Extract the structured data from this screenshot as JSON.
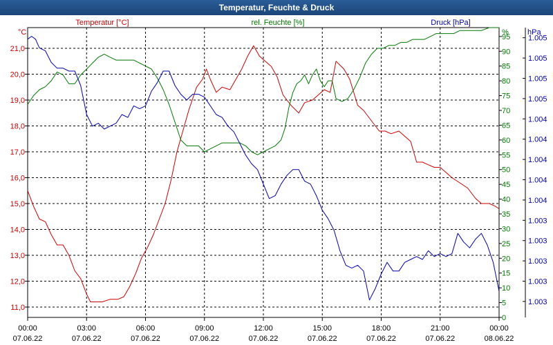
{
  "chart_data": {
    "type": "line",
    "title": "Temperatur, Feuchte & Druck",
    "x_ticks": [
      {
        "time": "00:00",
        "date": "07.06.22"
      },
      {
        "time": "03:00",
        "date": "07.06.22"
      },
      {
        "time": "06:00",
        "date": "07.06.22"
      },
      {
        "time": "09:00",
        "date": "07.06.22"
      },
      {
        "time": "12:00",
        "date": "07.06.22"
      },
      {
        "time": "15:00",
        "date": "07.06.22"
      },
      {
        "time": "18:00",
        "date": "07.06.22"
      },
      {
        "time": "21:00",
        "date": "07.06.22"
      },
      {
        "time": "00:00",
        "date": "08.06.22"
      }
    ],
    "xlim_hours": [
      0,
      24
    ],
    "grid": true,
    "axes": {
      "temperature": {
        "unit": "°C",
        "range": [
          10.6,
          21.8
        ],
        "ticks": [
          "21,0",
          "20,0",
          "19,0",
          "18,0",
          "17,0",
          "16,0",
          "15,0",
          "14,0",
          "13,0",
          "12,0",
          "11,0"
        ],
        "tick_values": [
          21,
          20,
          19,
          18,
          17,
          16,
          15,
          14,
          13,
          12,
          11
        ]
      },
      "humidity": {
        "unit": "%",
        "range": [
          0,
          98
        ],
        "ticks": [
          "95",
          "90",
          "85",
          "80",
          "75",
          "70",
          "65",
          "60",
          "55",
          "50",
          "45",
          "40",
          "35",
          "30",
          "25",
          "20",
          "15",
          "10",
          "5",
          "0"
        ],
        "tick_values": [
          95,
          90,
          85,
          80,
          75,
          70,
          65,
          60,
          55,
          50,
          45,
          40,
          35,
          30,
          25,
          20,
          15,
          10,
          5,
          0
        ]
      },
      "pressure": {
        "unit": "hPa",
        "range": [
          0,
          100
        ],
        "ticks": [
          "1.005",
          "1.005",
          "1.005",
          "1.005",
          "1.004",
          "1.004",
          "1.004",
          "1.004",
          "1.004",
          "1.003",
          "1.003",
          "1.003",
          "1.003",
          "1.003"
        ],
        "tick_positions": [
          96.5,
          89.5,
          82.5,
          75.5,
          68.5,
          61.5,
          54.5,
          47.5,
          40.5,
          33.5,
          26.5,
          19.5,
          12.5,
          5.5
        ]
      }
    },
    "legend": {
      "temperature": "Temperatur [°C]",
      "humidity": "rel. Feuchte [%]",
      "pressure": "Druck [hPa]"
    },
    "series": [
      {
        "name": "Temperatur [°C]",
        "axis": "temperature",
        "color": "#cc0000",
        "points": [
          [
            0,
            15.5
          ],
          [
            0.3,
            14.9
          ],
          [
            0.6,
            14.4
          ],
          [
            0.9,
            14.3
          ],
          [
            1.2,
            13.8
          ],
          [
            1.5,
            13.4
          ],
          [
            1.8,
            13.4
          ],
          [
            2.1,
            13.0
          ],
          [
            2.4,
            12.4
          ],
          [
            2.7,
            12.1
          ],
          [
            3.0,
            11.5
          ],
          [
            3.2,
            11.2
          ],
          [
            3.5,
            11.2
          ],
          [
            3.8,
            11.2
          ],
          [
            4.2,
            11.3
          ],
          [
            4.6,
            11.3
          ],
          [
            4.9,
            11.4
          ],
          [
            5.2,
            11.8
          ],
          [
            5.5,
            12.3
          ],
          [
            5.8,
            12.9
          ],
          [
            6.1,
            13.3
          ],
          [
            6.4,
            13.8
          ],
          [
            6.7,
            14.4
          ],
          [
            7.0,
            15.0
          ],
          [
            7.3,
            15.9
          ],
          [
            7.6,
            17.0
          ],
          [
            7.9,
            17.8
          ],
          [
            8.2,
            18.6
          ],
          [
            8.6,
            19.5
          ],
          [
            8.9,
            19.8
          ],
          [
            9.1,
            20.2
          ],
          [
            9.3,
            19.8
          ],
          [
            9.6,
            19.3
          ],
          [
            9.9,
            19.5
          ],
          [
            10.3,
            19.4
          ],
          [
            10.6,
            19.8
          ],
          [
            10.9,
            20.2
          ],
          [
            11.2,
            20.7
          ],
          [
            11.5,
            21.1
          ],
          [
            11.8,
            20.7
          ],
          [
            12.1,
            20.5
          ],
          [
            12.4,
            20.3
          ],
          [
            12.7,
            19.9
          ],
          [
            13.0,
            19.2
          ],
          [
            13.4,
            18.8
          ],
          [
            13.8,
            18.5
          ],
          [
            14.1,
            18.9
          ],
          [
            14.5,
            19.0
          ],
          [
            14.8,
            19.2
          ],
          [
            15.1,
            19.4
          ],
          [
            15.4,
            19.3
          ],
          [
            15.7,
            20.5
          ],
          [
            16.1,
            20.2
          ],
          [
            16.4,
            19.8
          ],
          [
            16.8,
            18.8
          ],
          [
            17.1,
            18.6
          ],
          [
            17.5,
            18.2
          ],
          [
            17.9,
            17.8
          ],
          [
            18.2,
            17.8
          ],
          [
            18.5,
            17.7
          ],
          [
            18.9,
            17.8
          ],
          [
            19.2,
            17.6
          ],
          [
            19.5,
            17.4
          ],
          [
            19.8,
            16.6
          ],
          [
            20.1,
            16.6
          ],
          [
            20.4,
            16.5
          ],
          [
            20.7,
            16.4
          ],
          [
            21.0,
            16.4
          ],
          [
            21.3,
            16.2
          ],
          [
            21.6,
            16.0
          ],
          [
            22.0,
            15.8
          ],
          [
            22.4,
            15.6
          ],
          [
            22.8,
            15.2
          ],
          [
            23.1,
            15.0
          ],
          [
            23.5,
            15.0
          ],
          [
            23.8,
            14.9
          ],
          [
            24.0,
            14.8
          ]
        ]
      },
      {
        "name": "rel. Feuchte [%]",
        "axis": "humidity",
        "color": "#007700",
        "points": [
          [
            0,
            72
          ],
          [
            0.3,
            75
          ],
          [
            0.6,
            77
          ],
          [
            0.9,
            78
          ],
          [
            1.2,
            80
          ],
          [
            1.5,
            83
          ],
          [
            1.8,
            82
          ],
          [
            2.1,
            79
          ],
          [
            2.4,
            79
          ],
          [
            2.7,
            82
          ],
          [
            3.0,
            84
          ],
          [
            3.3,
            86
          ],
          [
            3.6,
            88
          ],
          [
            3.9,
            89
          ],
          [
            4.2,
            88
          ],
          [
            4.5,
            87
          ],
          [
            4.8,
            87
          ],
          [
            5.1,
            87
          ],
          [
            5.4,
            87
          ],
          [
            5.7,
            86
          ],
          [
            6.0,
            85
          ],
          [
            6.3,
            84
          ],
          [
            6.6,
            81
          ],
          [
            6.9,
            77
          ],
          [
            7.2,
            72
          ],
          [
            7.5,
            66
          ],
          [
            7.8,
            60
          ],
          [
            8.1,
            58
          ],
          [
            8.4,
            58
          ],
          [
            8.7,
            58
          ],
          [
            9.0,
            56
          ],
          [
            9.3,
            57
          ],
          [
            9.6,
            58
          ],
          [
            9.9,
            59
          ],
          [
            10.2,
            59
          ],
          [
            10.5,
            59
          ],
          [
            10.8,
            59
          ],
          [
            11.1,
            58
          ],
          [
            11.4,
            56
          ],
          [
            11.7,
            55
          ],
          [
            12.0,
            56
          ],
          [
            12.3,
            57
          ],
          [
            12.6,
            58
          ],
          [
            12.9,
            60
          ],
          [
            13.1,
            64
          ],
          [
            13.3,
            71
          ],
          [
            13.5,
            76
          ],
          [
            13.7,
            79
          ],
          [
            13.9,
            80
          ],
          [
            14.1,
            82
          ],
          [
            14.3,
            79
          ],
          [
            14.5,
            82
          ],
          [
            14.7,
            84
          ],
          [
            14.9,
            80
          ],
          [
            15.1,
            78
          ],
          [
            15.3,
            80
          ],
          [
            15.5,
            80
          ],
          [
            15.7,
            74
          ],
          [
            16.0,
            73
          ],
          [
            16.3,
            74
          ],
          [
            16.6,
            77
          ],
          [
            16.9,
            81
          ],
          [
            17.2,
            86
          ],
          [
            17.5,
            89
          ],
          [
            17.8,
            91
          ],
          [
            18.1,
            91
          ],
          [
            18.4,
            92
          ],
          [
            18.7,
            92
          ],
          [
            19.0,
            93
          ],
          [
            19.3,
            93
          ],
          [
            19.6,
            94
          ],
          [
            19.9,
            94
          ],
          [
            20.2,
            94
          ],
          [
            20.5,
            95
          ],
          [
            20.8,
            96
          ],
          [
            21.1,
            96
          ],
          [
            21.4,
            96
          ],
          [
            21.7,
            96
          ],
          [
            22.0,
            97
          ],
          [
            22.4,
            97
          ],
          [
            22.8,
            97
          ],
          [
            23.1,
            97
          ],
          [
            23.5,
            98
          ],
          [
            24.0,
            98
          ]
        ]
      },
      {
        "name": "Druck [hPa]",
        "axis": "pressure",
        "color": "#0000aa",
        "points": [
          [
            0,
            96
          ],
          [
            0.2,
            97
          ],
          [
            0.4,
            96
          ],
          [
            0.6,
            93
          ],
          [
            0.9,
            92
          ],
          [
            1.2,
            88
          ],
          [
            1.5,
            86
          ],
          [
            1.8,
            86
          ],
          [
            2.1,
            85
          ],
          [
            2.4,
            85
          ],
          [
            2.7,
            80
          ],
          [
            3.0,
            70
          ],
          [
            3.3,
            66
          ],
          [
            3.6,
            67
          ],
          [
            3.9,
            65
          ],
          [
            4.2,
            66
          ],
          [
            4.5,
            67
          ],
          [
            4.8,
            70
          ],
          [
            5.1,
            69
          ],
          [
            5.4,
            73
          ],
          [
            5.7,
            72
          ],
          [
            6.0,
            73
          ],
          [
            6.3,
            78
          ],
          [
            6.6,
            81
          ],
          [
            6.9,
            85
          ],
          [
            7.2,
            85
          ],
          [
            7.5,
            80
          ],
          [
            7.8,
            77
          ],
          [
            8.1,
            75
          ],
          [
            8.4,
            77
          ],
          [
            8.7,
            77
          ],
          [
            9.0,
            76
          ],
          [
            9.3,
            73
          ],
          [
            9.6,
            70
          ],
          [
            9.9,
            69
          ],
          [
            10.2,
            66
          ],
          [
            10.5,
            64
          ],
          [
            10.8,
            60
          ],
          [
            11.1,
            56
          ],
          [
            11.4,
            53
          ],
          [
            11.7,
            51
          ],
          [
            12.0,
            46
          ],
          [
            12.3,
            41
          ],
          [
            12.6,
            42
          ],
          [
            12.9,
            46
          ],
          [
            13.2,
            49
          ],
          [
            13.5,
            51
          ],
          [
            13.8,
            51
          ],
          [
            14.1,
            47
          ],
          [
            14.4,
            46
          ],
          [
            14.7,
            42
          ],
          [
            15.0,
            37
          ],
          [
            15.3,
            34
          ],
          [
            15.6,
            30
          ],
          [
            15.9,
            23
          ],
          [
            16.2,
            18
          ],
          [
            16.5,
            17
          ],
          [
            16.8,
            18
          ],
          [
            17.1,
            16
          ],
          [
            17.4,
            6
          ],
          [
            17.7,
            10
          ],
          [
            18.0,
            15
          ],
          [
            18.3,
            19
          ],
          [
            18.6,
            16
          ],
          [
            18.9,
            16
          ],
          [
            19.2,
            19
          ],
          [
            19.5,
            20
          ],
          [
            19.8,
            21
          ],
          [
            20.1,
            20
          ],
          [
            20.4,
            23
          ],
          [
            20.7,
            21
          ],
          [
            21.0,
            22
          ],
          [
            21.3,
            21
          ],
          [
            21.6,
            22
          ],
          [
            21.9,
            29
          ],
          [
            22.2,
            26
          ],
          [
            22.5,
            24
          ],
          [
            22.8,
            27
          ],
          [
            23.1,
            29
          ],
          [
            23.4,
            25
          ],
          [
            23.7,
            19
          ],
          [
            24.0,
            9
          ]
        ]
      }
    ]
  }
}
